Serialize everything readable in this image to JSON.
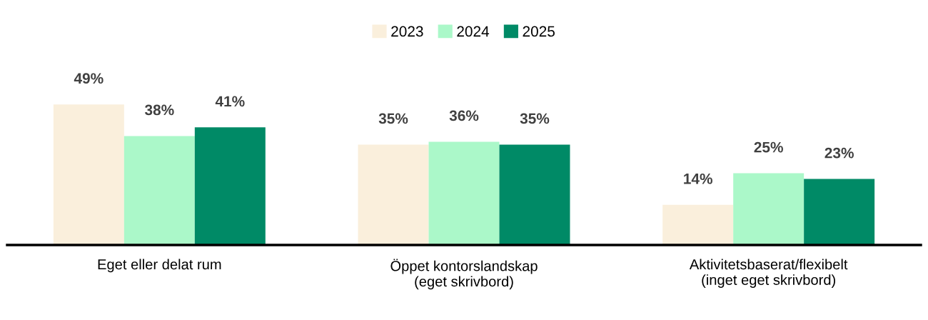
{
  "chart_data": {
    "type": "bar",
    "categories": [
      "Eget eller delat rum",
      "Öppet kontorslandskap\n(eget skrivbord)",
      "Aktivitetsbaserat/flexibelt\n(inget eget skrivbord)"
    ],
    "series": [
      {
        "name": "2023",
        "color": "#faefdc",
        "values": [
          49,
          35,
          14
        ],
        "value_labels": [
          "49%",
          "35%",
          "14%"
        ]
      },
      {
        "name": "2024",
        "color": "#abf8c9",
        "values": [
          38,
          36,
          25
        ],
        "value_labels": [
          "38%",
          "36%",
          "25%"
        ]
      },
      {
        "name": "2025",
        "color": "#008a66",
        "values": [
          41,
          35,
          23
        ],
        "value_labels": [
          "41%",
          "35%",
          "23%"
        ]
      }
    ],
    "tick_labels": "x",
    "grid": false,
    "legend": "top"
  }
}
